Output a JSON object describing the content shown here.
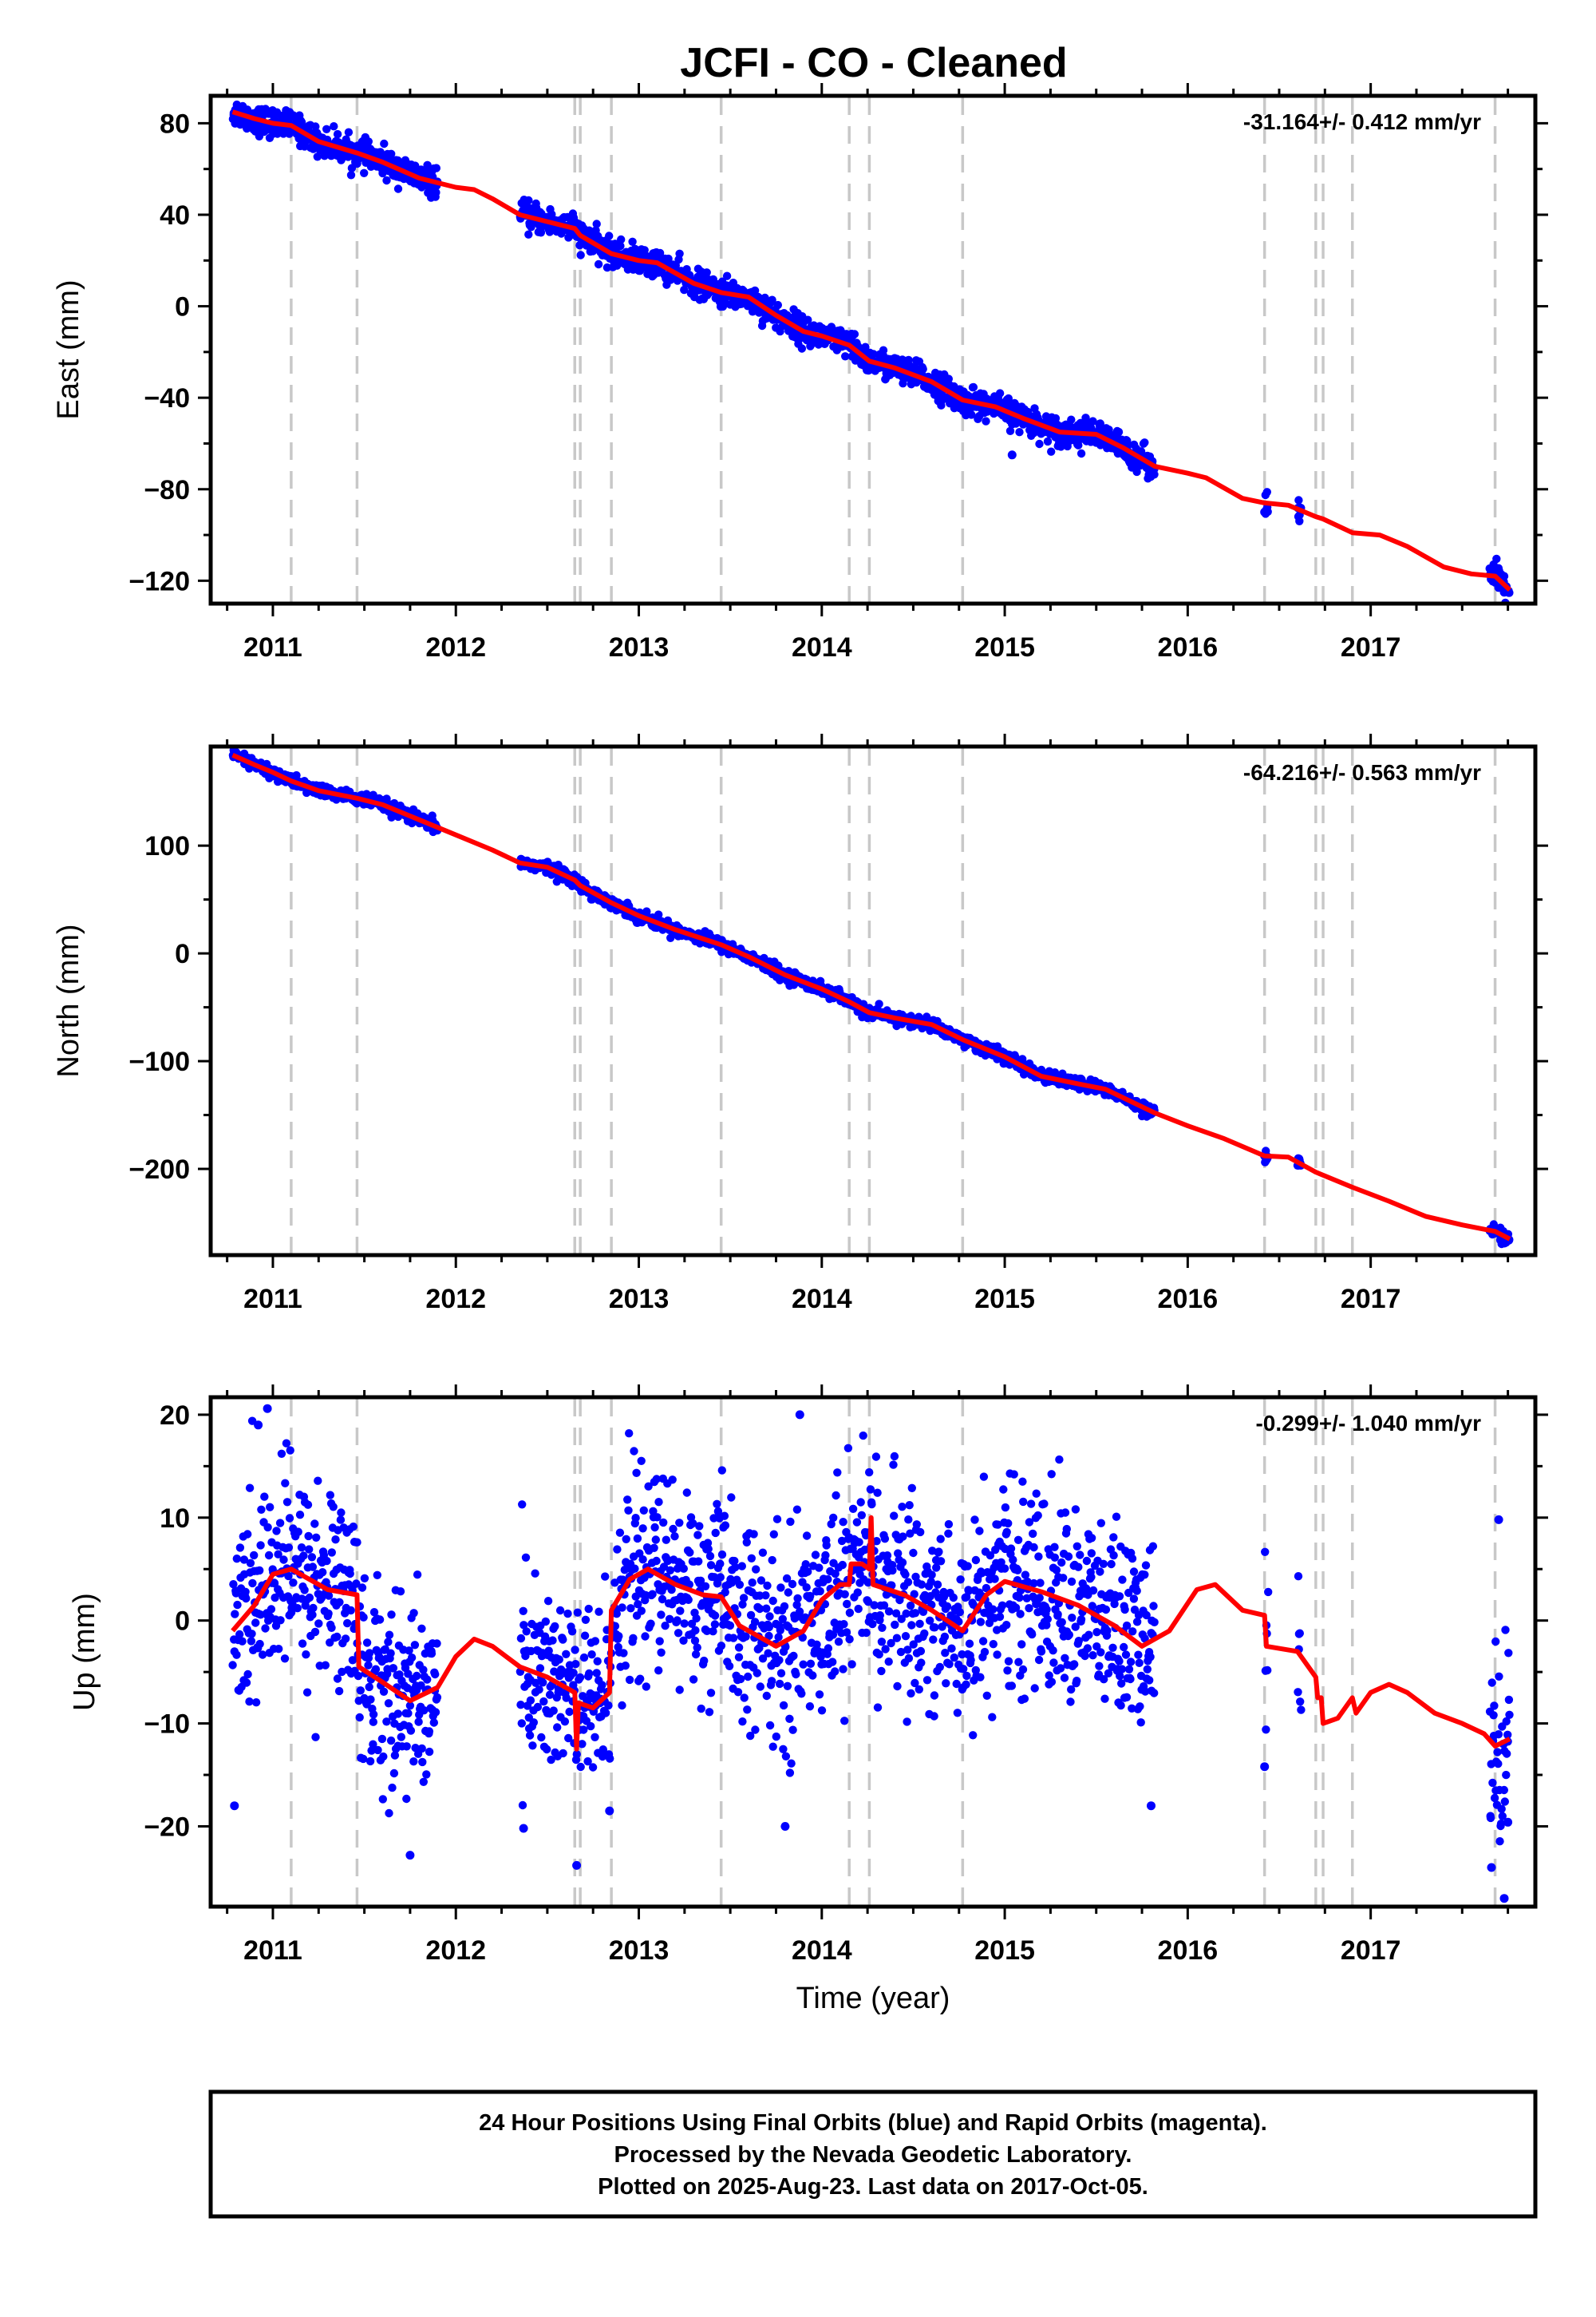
{
  "title": "JCFI  - CO - Cleaned",
  "colors": {
    "data": "#0000ff",
    "model": "#ff0000",
    "event_line": "#c8c8c8",
    "frame": "#000000"
  },
  "footer": {
    "lines": [
      "24 Hour Positions Using Final Orbits (blue) and Rapid Orbits (magenta).",
      "Processed by the Nevada Geodetic Laboratory.",
      "Plotted on 2025-Aug-23. Last data on 2017-Oct-05."
    ]
  },
  "chart_data": [
    {
      "type": "scatter",
      "name": "east",
      "ylabel": "East (mm)",
      "xlabel": "",
      "rate": "-31.164+/- 0.412 mm/yr",
      "xlim": [
        2010.66,
        2017.9
      ],
      "ylim": [
        -130,
        92
      ],
      "x_ticks": [
        2011,
        2012,
        2013,
        2014,
        2015,
        2016,
        2017
      ],
      "y_ticks": [
        80,
        40,
        0,
        -40,
        -80,
        -120
      ],
      "y_tick_labels": [
        "80",
        "40",
        "0",
        "−40",
        "−80",
        "−120"
      ],
      "event_lines": [
        2011.1,
        2011.46,
        2012.65,
        2012.68,
        2012.85,
        2013.45,
        2014.15,
        2014.26,
        2014.77,
        2016.42,
        2016.7,
        2016.74,
        2016.9,
        2017.68
      ],
      "data_segments": [
        [
          2010.78,
          2011.9
        ],
        [
          2012.35,
          2015.82
        ],
        [
          2016.42,
          2016.44
        ],
        [
          2016.6,
          2016.62
        ],
        [
          2017.65,
          2017.76
        ]
      ],
      "model": [
        [
          2010.78,
          85
        ],
        [
          2010.9,
          82
        ],
        [
          2011.0,
          80
        ],
        [
          2011.1,
          79
        ],
        [
          2011.25,
          72
        ],
        [
          2011.46,
          67
        ],
        [
          2011.6,
          63
        ],
        [
          2011.8,
          56
        ],
        [
          2012.0,
          52
        ],
        [
          2012.1,
          51
        ],
        [
          2012.2,
          47
        ],
        [
          2012.35,
          40
        ],
        [
          2012.5,
          37
        ],
        [
          2012.65,
          34
        ],
        [
          2012.68,
          31
        ],
        [
          2012.85,
          23
        ],
        [
          2013.0,
          20
        ],
        [
          2013.1,
          19
        ],
        [
          2013.3,
          10
        ],
        [
          2013.45,
          6
        ],
        [
          2013.6,
          4
        ],
        [
          2013.75,
          -4
        ],
        [
          2013.9,
          -11
        ],
        [
          2014.0,
          -13
        ],
        [
          2014.15,
          -17
        ],
        [
          2014.26,
          -24
        ],
        [
          2014.4,
          -27
        ],
        [
          2014.6,
          -33
        ],
        [
          2014.77,
          -41
        ],
        [
          2014.95,
          -44
        ],
        [
          2015.1,
          -49
        ],
        [
          2015.3,
          -55
        ],
        [
          2015.5,
          -56
        ],
        [
          2015.65,
          -62
        ],
        [
          2015.82,
          -70
        ],
        [
          2016.0,
          -73
        ],
        [
          2016.1,
          -75
        ],
        [
          2016.3,
          -84
        ],
        [
          2016.42,
          -86
        ],
        [
          2016.55,
          -87
        ],
        [
          2016.7,
          -92
        ],
        [
          2016.74,
          -93
        ],
        [
          2016.9,
          -99
        ],
        [
          2017.05,
          -100
        ],
        [
          2017.2,
          -105
        ],
        [
          2017.4,
          -114
        ],
        [
          2017.55,
          -117
        ],
        [
          2017.68,
          -118
        ],
        [
          2017.76,
          -124
        ]
      ],
      "model_offsets": [],
      "scatter": 3.0,
      "outliers": [
        [
          2015.04,
          -65
        ],
        [
          2016.42,
          -90
        ],
        [
          2016.61,
          -88
        ],
        [
          2017.7,
          -123
        ],
        [
          2017.73,
          -125
        ]
      ]
    },
    {
      "type": "scatter",
      "name": "north",
      "ylabel": "North (mm)",
      "xlabel": "",
      "rate": "-64.216+/- 0.563 mm/yr",
      "xlim": [
        2010.66,
        2017.9
      ],
      "ylim": [
        -280,
        192
      ],
      "x_ticks": [
        2011,
        2012,
        2013,
        2014,
        2015,
        2016,
        2017
      ],
      "y_ticks": [
        100,
        0,
        -100,
        -200
      ],
      "y_tick_labels": [
        "100",
        "0",
        "−100",
        "−200"
      ],
      "event_lines": [
        2011.1,
        2011.46,
        2012.65,
        2012.68,
        2012.85,
        2013.45,
        2014.15,
        2014.26,
        2014.77,
        2016.42,
        2016.7,
        2016.74,
        2016.9,
        2017.68
      ],
      "data_segments": [
        [
          2010.78,
          2011.9
        ],
        [
          2012.35,
          2015.82
        ],
        [
          2016.42,
          2016.44
        ],
        [
          2016.6,
          2016.62
        ],
        [
          2017.65,
          2017.76
        ]
      ],
      "model": [
        [
          2010.78,
          184
        ],
        [
          2010.9,
          175
        ],
        [
          2011.0,
          168
        ],
        [
          2011.1,
          160
        ],
        [
          2011.25,
          151
        ],
        [
          2011.46,
          144
        ],
        [
          2011.6,
          138
        ],
        [
          2011.8,
          124
        ],
        [
          2012.0,
          110
        ],
        [
          2012.2,
          96
        ],
        [
          2012.35,
          84
        ],
        [
          2012.5,
          80
        ],
        [
          2012.65,
          68
        ],
        [
          2012.68,
          63
        ],
        [
          2012.85,
          47
        ],
        [
          2013.0,
          35
        ],
        [
          2013.2,
          22
        ],
        [
          2013.45,
          8
        ],
        [
          2013.6,
          -3
        ],
        [
          2013.8,
          -20
        ],
        [
          2014.0,
          -33
        ],
        [
          2014.15,
          -45
        ],
        [
          2014.26,
          -55
        ],
        [
          2014.4,
          -60
        ],
        [
          2014.6,
          -66
        ],
        [
          2014.77,
          -80
        ],
        [
          2015.0,
          -96
        ],
        [
          2015.2,
          -114
        ],
        [
          2015.4,
          -121
        ],
        [
          2015.55,
          -126
        ],
        [
          2015.82,
          -148
        ],
        [
          2016.0,
          -160
        ],
        [
          2016.2,
          -172
        ],
        [
          2016.42,
          -188
        ],
        [
          2016.55,
          -189
        ],
        [
          2016.7,
          -203
        ],
        [
          2016.9,
          -217
        ],
        [
          2017.1,
          -230
        ],
        [
          2017.3,
          -244
        ],
        [
          2017.5,
          -252
        ],
        [
          2017.68,
          -258
        ],
        [
          2017.76,
          -265
        ]
      ],
      "model_offsets": [],
      "scatter": 2.8,
      "outliers": [
        [
          2016.42,
          -188
        ],
        [
          2016.61,
          -192
        ],
        [
          2017.71,
          -266
        ],
        [
          2017.74,
          -268
        ]
      ]
    },
    {
      "type": "scatter",
      "name": "up",
      "ylabel": "Up (mm)",
      "xlabel": "Time (year)",
      "rate": "-0.299+/- 1.040 mm/yr",
      "xlim": [
        2010.66,
        2017.9
      ],
      "ylim": [
        -27.8,
        21.7
      ],
      "x_ticks": [
        2011,
        2012,
        2013,
        2014,
        2015,
        2016,
        2017
      ],
      "y_ticks": [
        20,
        10,
        0,
        -10,
        -20
      ],
      "y_tick_labels": [
        "20",
        "10",
        "0",
        "−10",
        "−20"
      ],
      "event_lines": [
        2011.1,
        2011.46,
        2012.65,
        2012.68,
        2012.85,
        2013.45,
        2014.15,
        2014.26,
        2014.77,
        2016.42,
        2016.7,
        2016.74,
        2016.9,
        2017.68
      ],
      "data_segments": [
        [
          2010.78,
          2011.9
        ],
        [
          2012.35,
          2015.82
        ],
        [
          2016.42,
          2016.44
        ],
        [
          2016.6,
          2016.62
        ],
        [
          2017.65,
          2017.76
        ]
      ],
      "model": [
        [
          2010.78,
          -1.0
        ],
        [
          2010.9,
          1.5
        ],
        [
          2011.0,
          4.5
        ],
        [
          2011.1,
          5.0
        ],
        [
          2011.2,
          4.0
        ],
        [
          2011.3,
          3.0
        ],
        [
          2011.46,
          2.5
        ],
        [
          2011.47,
          -4.5
        ],
        [
          2011.6,
          -6.0
        ],
        [
          2011.75,
          -7.8
        ],
        [
          2011.9,
          -6.5
        ],
        [
          2012.0,
          -3.5
        ],
        [
          2012.1,
          -1.8
        ],
        [
          2012.2,
          -2.5
        ],
        [
          2012.35,
          -4.5
        ],
        [
          2012.5,
          -5.5
        ],
        [
          2012.65,
          -7.0
        ],
        [
          2012.66,
          -12.5
        ],
        [
          2012.67,
          -8.0
        ],
        [
          2012.75,
          -8.5
        ],
        [
          2012.84,
          -7.0
        ],
        [
          2012.85,
          1.0
        ],
        [
          2012.95,
          4.0
        ],
        [
          2013.05,
          5.0
        ],
        [
          2013.2,
          3.5
        ],
        [
          2013.35,
          2.5
        ],
        [
          2013.45,
          2.3
        ],
        [
          2013.55,
          -0.5
        ],
        [
          2013.75,
          -2.5
        ],
        [
          2013.9,
          -1.0
        ],
        [
          2014.0,
          2.0
        ],
        [
          2014.1,
          3.5
        ],
        [
          2014.15,
          3.5
        ],
        [
          2014.16,
          5.5
        ],
        [
          2014.22,
          5.5
        ],
        [
          2014.26,
          5.0
        ],
        [
          2014.27,
          10.0
        ],
        [
          2014.28,
          3.5
        ],
        [
          2014.45,
          2.5
        ],
        [
          2014.6,
          1.0
        ],
        [
          2014.77,
          -1.0
        ],
        [
          2014.9,
          2.5
        ],
        [
          2015.0,
          3.8
        ],
        [
          2015.2,
          2.8
        ],
        [
          2015.4,
          1.5
        ],
        [
          2015.6,
          -0.5
        ],
        [
          2015.75,
          -2.5
        ],
        [
          2015.9,
          -1.0
        ],
        [
          2016.05,
          3.0
        ],
        [
          2016.15,
          3.5
        ],
        [
          2016.3,
          1.0
        ],
        [
          2016.42,
          0.5
        ],
        [
          2016.43,
          -2.5
        ],
        [
          2016.6,
          -3.0
        ],
        [
          2016.7,
          -5.5
        ],
        [
          2016.71,
          -7.5
        ],
        [
          2016.73,
          -7.5
        ],
        [
          2016.74,
          -10.0
        ],
        [
          2016.82,
          -9.5
        ],
        [
          2016.9,
          -7.5
        ],
        [
          2016.92,
          -9.0
        ],
        [
          2017.0,
          -7.0
        ],
        [
          2017.1,
          -6.2
        ],
        [
          2017.2,
          -7.0
        ],
        [
          2017.35,
          -9.0
        ],
        [
          2017.5,
          -10.0
        ],
        [
          2017.62,
          -11.0
        ],
        [
          2017.68,
          -12.2
        ],
        [
          2017.76,
          -11.5
        ]
      ],
      "model_offsets": [],
      "scatter": 4.8,
      "outliers": [
        [
          2010.79,
          -18.0
        ],
        [
          2010.92,
          19.0
        ],
        [
          2010.97,
          20.6
        ],
        [
          2012.37,
          -20.2
        ],
        [
          2012.66,
          -23.8
        ],
        [
          2012.84,
          -18.5
        ],
        [
          2013.8,
          -20.0
        ],
        [
          2013.88,
          20.0
        ],
        [
          2015.8,
          -18.0
        ],
        [
          2016.42,
          -14.2
        ],
        [
          2017.7,
          9.8
        ],
        [
          2017.66,
          -24.0
        ],
        [
          2017.73,
          -27.0
        ],
        [
          2017.75,
          -19.6
        ],
        [
          2011.75,
          -22.8
        ]
      ]
    }
  ]
}
